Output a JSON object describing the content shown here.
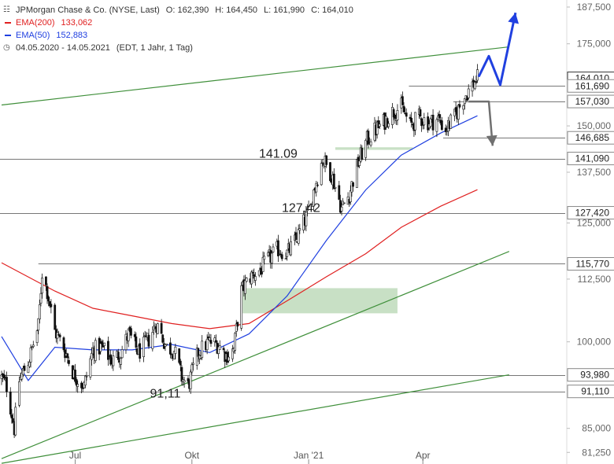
{
  "header": {
    "title": "JPMorgan Chase & Co. (NYSE, Last)",
    "ohlc": {
      "open": "O: 162,390",
      "high": "H: 164,450",
      "low": "L: 161,990",
      "close": "C: 164,010"
    },
    "ema200": {
      "label": "EMA(200)",
      "value": "133,062",
      "color": "#e02020"
    },
    "ema50": {
      "label": "EMA(50)",
      "value": "152,883",
      "color": "#2040e0"
    },
    "range": "04.05.2020 - 14.05.2021",
    "meta": "(EDT, 1 Jahr, 1 Tag)",
    "icons": {
      "chart": "candlestick-icon",
      "clock": "clock-icon"
    }
  },
  "chart_data": {
    "type": "candlestick",
    "title": "JPMorgan Chase & Co. (NYSE, Last)",
    "y_scale": "log",
    "ylim": [
      79.5,
      190
    ],
    "y_ticks": [
      "81,250",
      "85,000",
      "100,000",
      "112,500",
      "125,000",
      "137,500",
      "150,000",
      "175,000",
      "187,500"
    ],
    "x_ticks": [
      {
        "label": "Jul",
        "date": "2020-07-01"
      },
      {
        "label": "Okt",
        "date": "2020-10-01"
      },
      {
        "label": "Jan '21",
        "date": "2021-01-01"
      },
      {
        "label": "Apr",
        "date": "2021-04-01"
      }
    ],
    "x_range": [
      "2020-05-04",
      "2021-05-14"
    ],
    "series": [
      {
        "name": "JPMorgan Chase & Co.",
        "color": "#111111",
        "points": [
          {
            "date": "2020-05-04",
            "close": 93.5
          },
          {
            "date": "2020-05-08",
            "close": 92.0
          },
          {
            "date": "2020-05-14",
            "close": 85.0
          },
          {
            "date": "2020-05-18",
            "close": 93.0
          },
          {
            "date": "2020-05-26",
            "close": 97.0
          },
          {
            "date": "2020-06-02",
            "close": 103.0
          },
          {
            "date": "2020-06-05",
            "close": 114.0
          },
          {
            "date": "2020-06-09",
            "close": 110.0
          },
          {
            "date": "2020-06-15",
            "close": 102.0
          },
          {
            "date": "2020-06-22",
            "close": 99.0
          },
          {
            "date": "2020-06-30",
            "close": 94.0
          },
          {
            "date": "2020-07-08",
            "close": 92.0
          },
          {
            "date": "2020-07-15",
            "close": 98.5
          },
          {
            "date": "2020-07-22",
            "close": 99.0
          },
          {
            "date": "2020-07-30",
            "close": 96.5
          },
          {
            "date": "2020-08-06",
            "close": 98.0
          },
          {
            "date": "2020-08-12",
            "close": 101.5
          },
          {
            "date": "2020-08-20",
            "close": 98.0
          },
          {
            "date": "2020-08-28",
            "close": 100.5
          },
          {
            "date": "2020-09-03",
            "close": 103.5
          },
          {
            "date": "2020-09-11",
            "close": 99.0
          },
          {
            "date": "2020-09-17",
            "close": 98.5
          },
          {
            "date": "2020-09-23",
            "close": 93.5
          },
          {
            "date": "2020-09-28",
            "close": 92.0
          },
          {
            "date": "2020-10-06",
            "close": 98.0
          },
          {
            "date": "2020-10-14",
            "close": 100.0
          },
          {
            "date": "2020-10-22",
            "close": 99.5
          },
          {
            "date": "2020-10-28",
            "close": 97.5
          },
          {
            "date": "2020-11-03",
            "close": 98.5
          },
          {
            "date": "2020-11-09",
            "close": 110.0
          },
          {
            "date": "2020-11-16",
            "close": 113.0
          },
          {
            "date": "2020-11-24",
            "close": 114.5
          },
          {
            "date": "2020-12-01",
            "close": 117.0
          },
          {
            "date": "2020-12-08",
            "close": 119.0
          },
          {
            "date": "2020-12-15",
            "close": 118.0
          },
          {
            "date": "2020-12-22",
            "close": 121.0
          },
          {
            "date": "2020-12-31",
            "close": 127.0
          },
          {
            "date": "2021-01-06",
            "close": 134.0
          },
          {
            "date": "2021-01-12",
            "close": 141.0
          },
          {
            "date": "2021-01-19",
            "close": 137.0
          },
          {
            "date": "2021-01-27",
            "close": 128.5
          },
          {
            "date": "2021-02-02",
            "close": 132.0
          },
          {
            "date": "2021-02-09",
            "close": 140.0
          },
          {
            "date": "2021-02-16",
            "close": 146.0
          },
          {
            "date": "2021-02-23",
            "close": 149.0
          },
          {
            "date": "2021-03-01",
            "close": 151.0
          },
          {
            "date": "2021-03-08",
            "close": 154.0
          },
          {
            "date": "2021-03-15",
            "close": 155.5
          },
          {
            "date": "2021-03-22",
            "close": 150.0
          },
          {
            "date": "2021-03-29",
            "close": 152.5
          },
          {
            "date": "2021-04-06",
            "close": 151.0
          },
          {
            "date": "2021-04-13",
            "close": 152.0
          },
          {
            "date": "2021-04-19",
            "close": 149.0
          },
          {
            "date": "2021-04-26",
            "close": 152.5
          },
          {
            "date": "2021-05-03",
            "close": 158.0
          },
          {
            "date": "2021-05-10",
            "close": 162.0
          },
          {
            "date": "2021-05-14",
            "close": 164.01
          }
        ]
      },
      {
        "name": "EMA(200)",
        "color": "#e02020",
        "points": [
          {
            "date": "2020-05-04",
            "value": 116.0
          },
          {
            "date": "2020-06-15",
            "value": 110.0
          },
          {
            "date": "2020-07-15",
            "value": 106.5
          },
          {
            "date": "2020-08-15",
            "value": 105.0
          },
          {
            "date": "2020-09-15",
            "value": 103.5
          },
          {
            "date": "2020-10-15",
            "value": 102.5
          },
          {
            "date": "2020-11-15",
            "value": 103.5
          },
          {
            "date": "2020-12-15",
            "value": 108.0
          },
          {
            "date": "2021-01-15",
            "value": 113.0
          },
          {
            "date": "2021-02-15",
            "value": 118.0
          },
          {
            "date": "2021-03-15",
            "value": 124.0
          },
          {
            "date": "2021-04-15",
            "value": 129.0
          },
          {
            "date": "2021-05-14",
            "value": 133.062
          }
        ]
      },
      {
        "name": "EMA(50)",
        "color": "#2040e0",
        "points": [
          {
            "date": "2020-05-04",
            "value": 101.0
          },
          {
            "date": "2020-05-25",
            "value": 93.0
          },
          {
            "date": "2020-06-15",
            "value": 99.0
          },
          {
            "date": "2020-07-15",
            "value": 98.5
          },
          {
            "date": "2020-08-15",
            "value": 98.5
          },
          {
            "date": "2020-09-15",
            "value": 99.5
          },
          {
            "date": "2020-10-15",
            "value": 98.0
          },
          {
            "date": "2020-11-15",
            "value": 101.5
          },
          {
            "date": "2020-12-15",
            "value": 109.0
          },
          {
            "date": "2021-01-15",
            "value": 121.0
          },
          {
            "date": "2021-02-15",
            "value": 133.0
          },
          {
            "date": "2021-03-15",
            "value": 142.0
          },
          {
            "date": "2021-04-15",
            "value": 148.0
          },
          {
            "date": "2021-05-14",
            "value": 152.883
          }
        ]
      }
    ],
    "horizontal_levels": [
      "161,690",
      "157,030",
      "146,685",
      "141,090",
      "127,420",
      "115,770",
      "93,980",
      "91,110"
    ],
    "level_values": [
      161.69,
      157.03,
      146.685,
      141.09,
      127.42,
      115.77,
      93.98,
      91.11
    ],
    "last_price": "164,010",
    "last_price_value": 164.01,
    "annotations": [
      {
        "text": "141.09",
        "date": "2020-12-08",
        "value": 141.09
      },
      {
        "text": "127.42",
        "date": "2020-12-26",
        "value": 127.42
      },
      {
        "text": "91,11",
        "date": "2020-09-10",
        "value": 91.11
      }
    ],
    "trendlines": [
      {
        "from": {
          "date": "2020-05-04",
          "value": 156.0
        },
        "to": {
          "date": "2021-06-08",
          "value": 174.0
        }
      },
      {
        "from": {
          "date": "2020-05-04",
          "value": 80.3
        },
        "to": {
          "date": "2021-06-08",
          "value": 118.5
        }
      },
      {
        "from": {
          "date": "2020-05-04",
          "value": 79.6
        },
        "to": {
          "date": "2021-06-08",
          "value": 94.0
        }
      }
    ],
    "zones": [
      {
        "from_date": "2020-11-10",
        "to_date": "2021-03-12",
        "low": 105.5,
        "high": 110.6
      },
      {
        "from_date": "2021-01-22",
        "to_date": "2021-03-24",
        "low": 143.4,
        "high": 144.1
      }
    ],
    "scenarios": [
      {
        "type": "bullish",
        "color": "#2040e0",
        "points": [
          {
            "date": "2021-05-15",
            "value": 164.5
          },
          {
            "date": "2021-05-23",
            "value": 171.0
          },
          {
            "date": "2021-06-01",
            "value": 162.0
          },
          {
            "date": "2021-06-13",
            "value": 185.5
          }
        ]
      },
      {
        "type": "bearish",
        "color": "#707070",
        "points": [
          {
            "date": "2021-05-07",
            "value": 157.03
          },
          {
            "date": "2021-05-23",
            "value": 157.03
          },
          {
            "date": "2021-05-26",
            "value": 144.5
          }
        ]
      }
    ],
    "grid": false,
    "legend": "top-left"
  }
}
